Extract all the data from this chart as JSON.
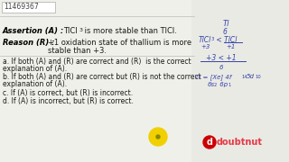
{
  "id": "11469367",
  "bg_color": "#f0f0ea",
  "right_bg": "#e8e8e2",
  "assertion_label": "Assertion (A) :",
  "assertion_text_part1": "TlCl",
  "assertion_text_sub": "3",
  "assertion_text_part2": " is more stable than TlCl.",
  "reason_label": "Reason (R) :",
  "reason_text1": "+1 oxidation state of thallium is more",
  "reason_text2": "stable than +3.",
  "options": [
    [
      "a.",
      "If both (A) and (R) are correct and (R)  is the correct",
      "   explanation of (A)."
    ],
    [
      "b.",
      "If both (A) and (R) are correct but (R) is not the correct",
      "   explanation of (A)."
    ],
    [
      "c.",
      "If (A) is correct, but (R) is incorrect."
    ],
    [
      "d.",
      "If (A) is incorrect, but (R) is correct."
    ]
  ],
  "divider_color": "#bbbbbb",
  "text_color": "#1a1a1a",
  "label_color": "#000000",
  "doubtnut_color": "#e63946",
  "yellow_circle": "#f0d000"
}
